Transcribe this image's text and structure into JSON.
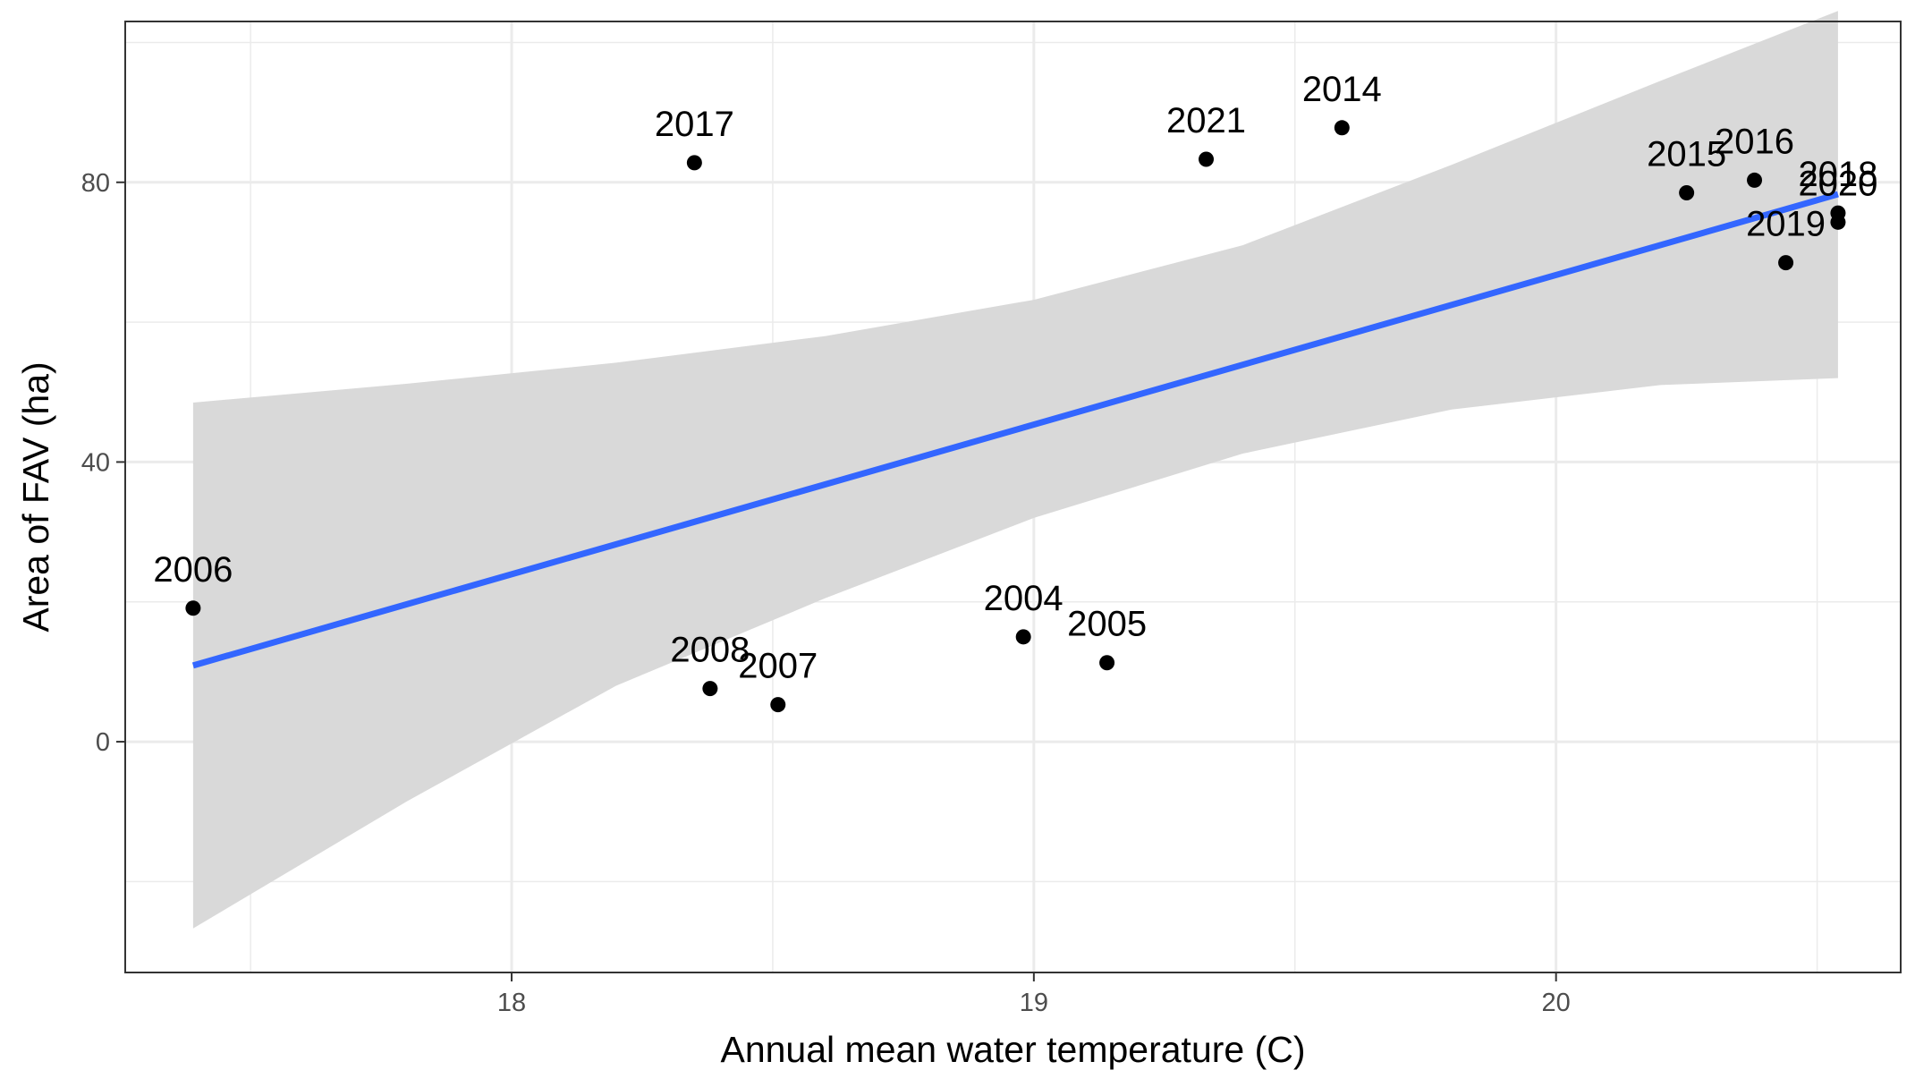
{
  "chart_data": {
    "type": "scatter",
    "title": "",
    "xlabel": "Annual mean water temperature (C)",
    "ylabel": "Area of FAV (ha)",
    "xlim": [
      17.26,
      20.66
    ],
    "ylim": [
      -33,
      103
    ],
    "x_ticks": [
      18,
      19,
      20
    ],
    "x_minor_ticks": [
      17.5,
      18.5,
      19.5,
      20.5
    ],
    "y_ticks": [
      0,
      40,
      80
    ],
    "y_minor_ticks": [
      -20,
      20,
      60,
      100
    ],
    "x_tick_labels": [
      "18",
      "19",
      "20"
    ],
    "y_tick_labels": [
      "0",
      "40",
      "80"
    ],
    "grid": true,
    "legend": "none",
    "points": [
      {
        "label": "2004",
        "x": 18.98,
        "y": 15
      },
      {
        "label": "2005",
        "x": 19.14,
        "y": 11.3
      },
      {
        "label": "2006",
        "x": 17.39,
        "y": 19.1
      },
      {
        "label": "2007",
        "x": 18.51,
        "y": 5.3
      },
      {
        "label": "2008",
        "x": 18.38,
        "y": 7.6
      },
      {
        "label": "2014",
        "x": 19.59,
        "y": 87.8
      },
      {
        "label": "2015",
        "x": 20.25,
        "y": 78.5
      },
      {
        "label": "2016",
        "x": 20.38,
        "y": 80.3
      },
      {
        "label": "2017",
        "x": 18.35,
        "y": 82.8
      },
      {
        "label": "2018",
        "x": 20.54,
        "y": 75.6
      },
      {
        "label": "2019",
        "x": 20.44,
        "y": 68.5
      },
      {
        "label": "2020",
        "x": 20.54,
        "y": 74.3
      },
      {
        "label": "2021",
        "x": 19.33,
        "y": 83.3
      }
    ],
    "fit_line": {
      "x": [
        17.39,
        20.54
      ],
      "y": [
        10.9,
        78.3
      ],
      "color": "#3366ff"
    },
    "confidence_band": {
      "x": [
        17.39,
        17.8,
        18.2,
        18.6,
        19.0,
        19.4,
        19.8,
        20.2,
        20.54
      ],
      "upper": [
        48.5,
        51.2,
        54.2,
        58.0,
        63.2,
        71.0,
        82.5,
        94.5,
        104.5
      ],
      "lower": [
        -26.7,
        -8.5,
        8.0,
        20.5,
        32.0,
        41.2,
        47.5,
        51.0,
        52.0
      ],
      "color": "#d9d9d9"
    }
  }
}
